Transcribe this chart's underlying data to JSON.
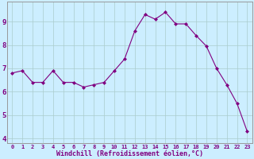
{
  "x": [
    0,
    1,
    2,
    3,
    4,
    5,
    6,
    7,
    8,
    9,
    10,
    11,
    12,
    13,
    14,
    15,
    16,
    17,
    18,
    19,
    20,
    21,
    22,
    23
  ],
  "y": [
    6.8,
    6.9,
    6.4,
    6.4,
    6.9,
    6.4,
    6.4,
    6.2,
    6.3,
    6.4,
    6.9,
    7.4,
    8.6,
    9.3,
    9.1,
    9.4,
    8.9,
    8.9,
    8.4,
    7.95,
    7.0,
    6.3,
    5.5,
    4.3
  ],
  "line_color": "#800080",
  "marker": "D",
  "marker_size": 2.0,
  "bg_color": "#cceeff",
  "grid_color": "#aacccc",
  "xlabel": "Windchill (Refroidissement éolien,°C)",
  "xlabel_color": "#800080",
  "tick_color": "#800080",
  "ylim": [
    3.8,
    9.85
  ],
  "xlim": [
    -0.5,
    23.5
  ],
  "yticks": [
    4,
    5,
    6,
    7,
    8,
    9
  ],
  "xticks": [
    0,
    1,
    2,
    3,
    4,
    5,
    6,
    7,
    8,
    9,
    10,
    11,
    12,
    13,
    14,
    15,
    16,
    17,
    18,
    19,
    20,
    21,
    22,
    23
  ],
  "xtick_labels": [
    "0",
    "1",
    "2",
    "3",
    "4",
    "5",
    "6",
    "7",
    "8",
    "9",
    "10",
    "11",
    "12",
    "13",
    "14",
    "15",
    "16",
    "17",
    "18",
    "19",
    "20",
    "21",
    "22",
    "23"
  ]
}
